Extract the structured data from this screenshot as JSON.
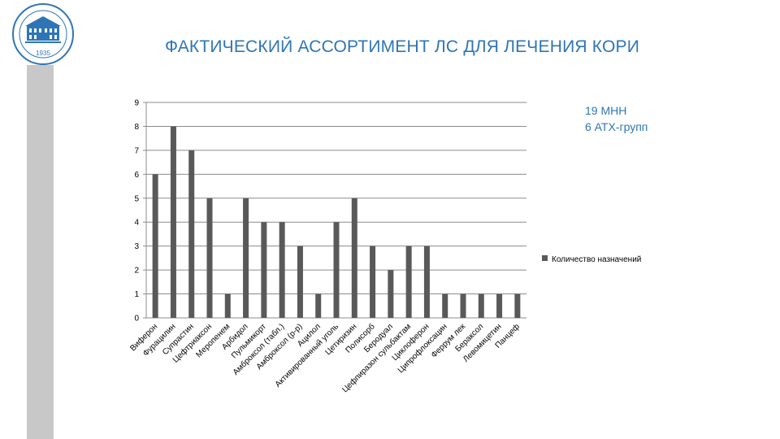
{
  "slide": {
    "title": "ФАКТИЧЕСКИЙ АССОРТИМЕНТ ЛС ДЛЯ ЛЕЧЕНИЯ КОРИ",
    "info_lines": [
      "19 МНН",
      "6 АТХ-групп"
    ],
    "logo_year": "1935",
    "accent_color": "#2e75b6",
    "sidebar_color": "#c8c8c8"
  },
  "chart_data": {
    "type": "bar",
    "categories": [
      "Виферон",
      "Фурацилин",
      "Супрастин",
      "Цефтриаксон",
      "Меропенем",
      "Арбидол",
      "Пульмикорт",
      "Амброксол (табл.)",
      "Амброксол (р-р)",
      "Ацилол",
      "Активированный уголь",
      "Цетиризин",
      "Полисорб",
      "Беродуал",
      "Цефпиразон сульбактам",
      "Циклоферон",
      "Ципрофлоксацин",
      "Феррум лек",
      "Бераксол",
      "Левомицетин",
      "Панцеф"
    ],
    "series": [
      {
        "name": "Количество назначений",
        "values": [
          6,
          8,
          7,
          5,
          1,
          5,
          4,
          4,
          3,
          1,
          4,
          5,
          3,
          2,
          3,
          3,
          1,
          1,
          1,
          1,
          1
        ],
        "color": "#595959"
      }
    ],
    "yticks": [
      "0",
      "1",
      "2",
      "3",
      "4",
      "5",
      "6",
      "7",
      "8",
      "9"
    ],
    "ylim": [
      0,
      9
    ],
    "grid": true,
    "legend_position": "right"
  }
}
